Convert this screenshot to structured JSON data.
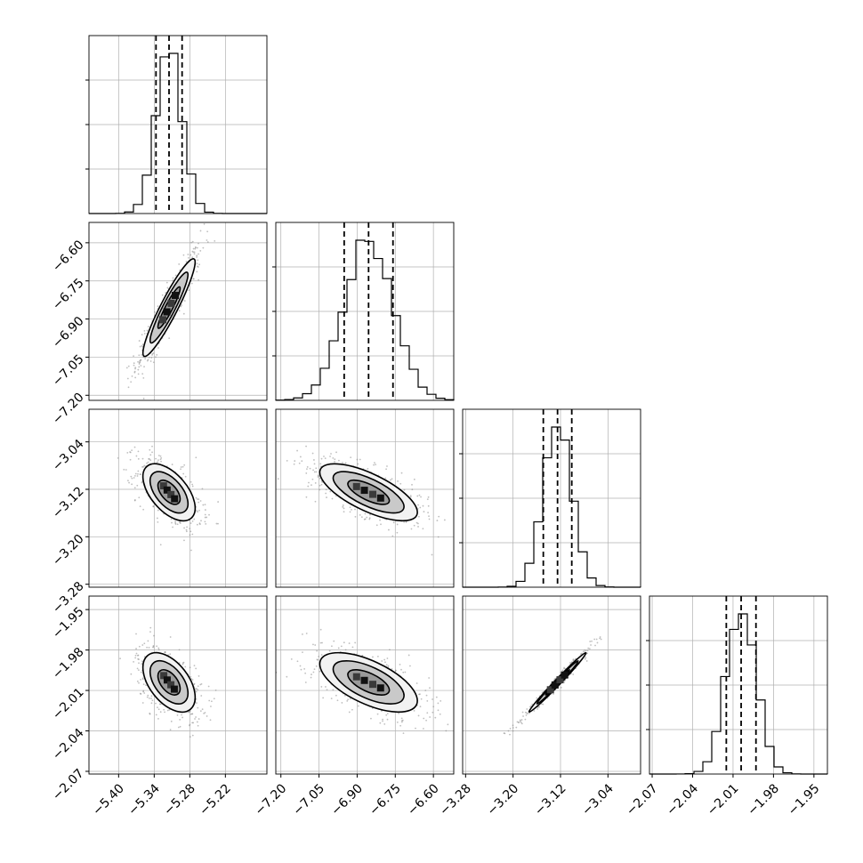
{
  "figure": {
    "type": "corner-plot",
    "background": "#ffffff",
    "line_color": "#000000",
    "grid_color": "#b0b0b0"
  },
  "chart_data": {
    "type": "corner",
    "parameters": [
      {
        "id": "p0",
        "range": [
          -5.45,
          -5.15
        ],
        "ticks": [
          -5.4,
          -5.34,
          -5.28,
          -5.22
        ],
        "tick_labels": [
          "−5.40",
          "−5.34",
          "−5.28",
          "−5.22"
        ],
        "mean": -5.315,
        "std": 0.022,
        "quantiles": [
          -5.337,
          -5.315,
          -5.293
        ]
      },
      {
        "id": "p1",
        "range": [
          -7.22,
          -6.52
        ],
        "ticks": [
          -7.2,
          -7.05,
          -6.9,
          -6.75,
          -6.6
        ],
        "tick_labels": [
          "−7.20",
          "−7.05",
          "−6.90",
          "−6.75",
          "−6.60"
        ],
        "mean": -6.855,
        "std": 0.096,
        "quantiles": [
          -6.951,
          -6.855,
          -6.759
        ]
      },
      {
        "id": "p2",
        "range": [
          -3.285,
          -2.985
        ],
        "ticks": [
          -3.28,
          -3.2,
          -3.12,
          -3.04
        ],
        "tick_labels": [
          "−3.28",
          "−3.20",
          "−3.12",
          "−3.04"
        ],
        "mean": -3.125,
        "std": 0.024,
        "quantiles": [
          -3.149,
          -3.125,
          -3.101
        ]
      },
      {
        "id": "p3",
        "range": [
          -2.072,
          -1.94
        ],
        "ticks": [
          -2.07,
          -2.04,
          -2.01,
          -1.98,
          -1.95
        ],
        "tick_labels": [
          "−2.07",
          "−2.04",
          "−2.01",
          "−1.98",
          "−1.95"
        ],
        "mean": -2.004,
        "std": 0.011,
        "quantiles": [
          -2.015,
          -2.004,
          -1.993
        ]
      }
    ],
    "correlations": [
      {
        "pair": [
          "p0",
          "p1"
        ],
        "rho": 0.93
      },
      {
        "pair": [
          "p0",
          "p2"
        ],
        "rho": -0.55
      },
      {
        "pair": [
          "p0",
          "p3"
        ],
        "rho": -0.5
      },
      {
        "pair": [
          "p1",
          "p2"
        ],
        "rho": -0.7
      },
      {
        "pair": [
          "p1",
          "p3"
        ],
        "rho": -0.62
      },
      {
        "pair": [
          "p2",
          "p3"
        ],
        "rho": 0.99
      }
    ],
    "diagonal": "histogram with dashed 16/50/84% quantile lines",
    "off_diagonal": "2D density: scatter points, shaded bins, contour levels",
    "grid": true,
    "title": "",
    "xlabel": "",
    "ylabel": ""
  }
}
